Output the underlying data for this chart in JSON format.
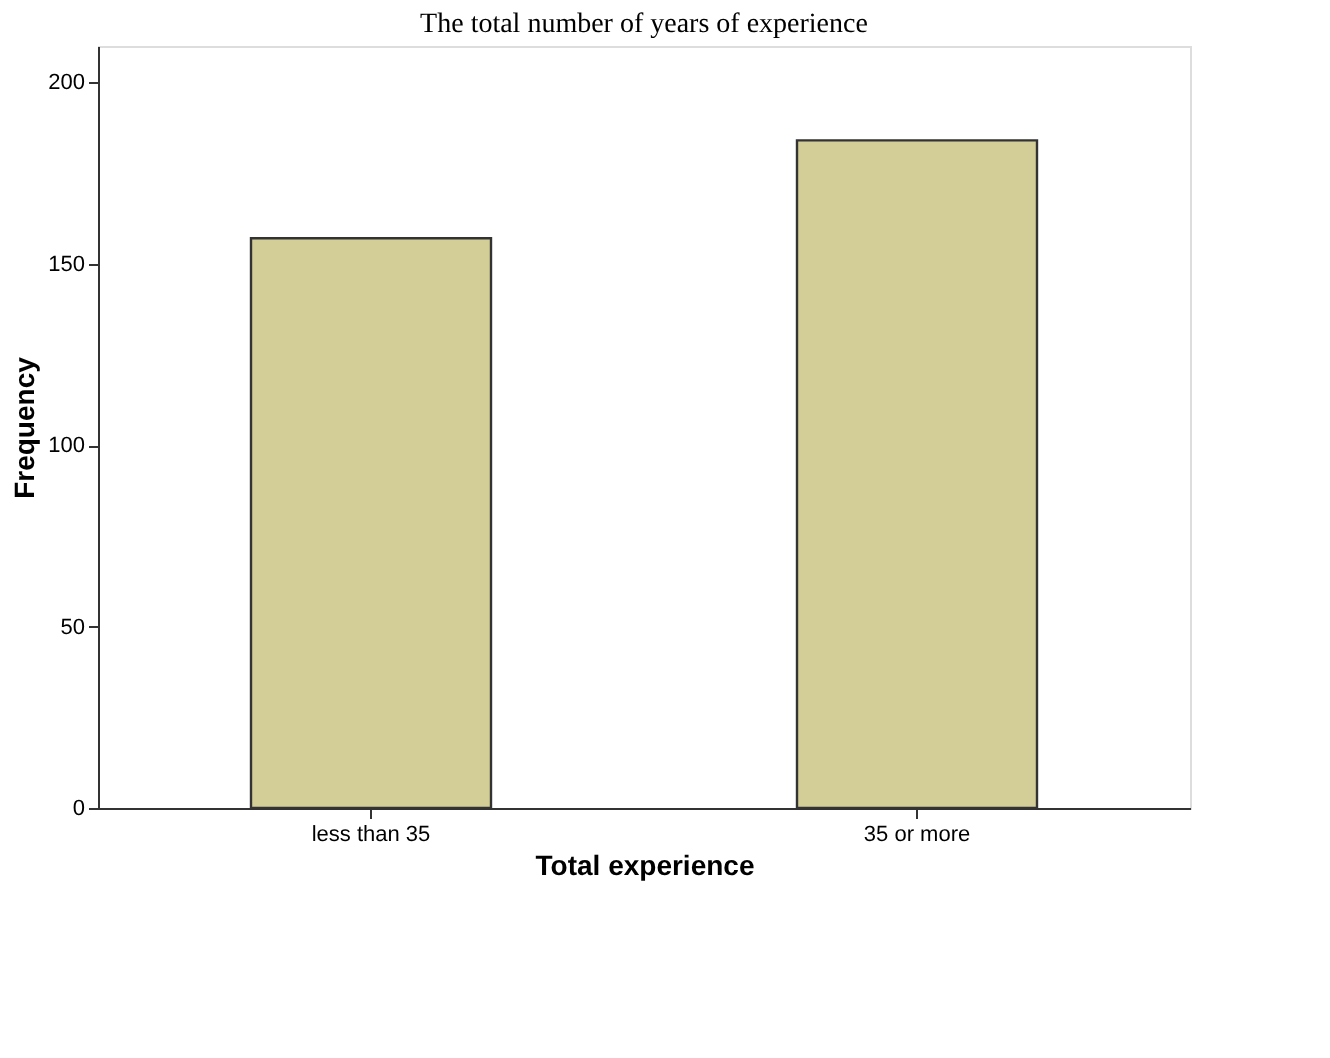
{
  "chart_data": {
    "type": "bar",
    "title": "The total number of years of experience",
    "xlabel": "Total experience",
    "ylabel": "Frequency",
    "categories": [
      "less than 35",
      "35 or more"
    ],
    "values": [
      157,
      184
    ],
    "color": "#d3ce97",
    "ylim": [
      0,
      210
    ],
    "yticks": [
      0,
      50,
      100,
      150,
      200
    ],
    "grid": false
  }
}
